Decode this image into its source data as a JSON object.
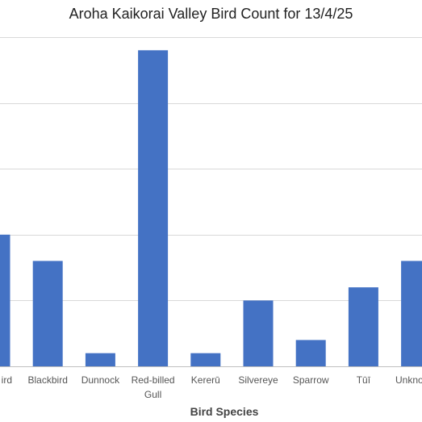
{
  "chart_data": {
    "type": "bar",
    "title": "Aroha Kaikorai Valley Bird Count for 13/4/25",
    "xlabel": "Bird Species",
    "ylabel": "",
    "categories": [
      "Bellbird",
      "Blackbird",
      "Dunnock",
      "Red-billed Gull",
      "Kererū",
      "Silvereye",
      "Sparrow",
      "Tūī",
      "Unknown"
    ],
    "visible_category_labels": [
      "ird",
      "Blackbird",
      "Dunnock",
      "Red-billed Gull",
      "Kererū",
      "Silvereye",
      "Sparrow",
      "Tūī",
      "Unkno"
    ],
    "values": [
      10,
      8,
      1,
      24,
      1,
      5,
      2,
      6,
      8
    ],
    "ylim": [
      0,
      25
    ],
    "y_gridlines": [
      0,
      5,
      10,
      15,
      20,
      25
    ],
    "grid": true,
    "legend": "none",
    "bar_color": "#4472C4",
    "grid_color": "#d9d9d9"
  }
}
